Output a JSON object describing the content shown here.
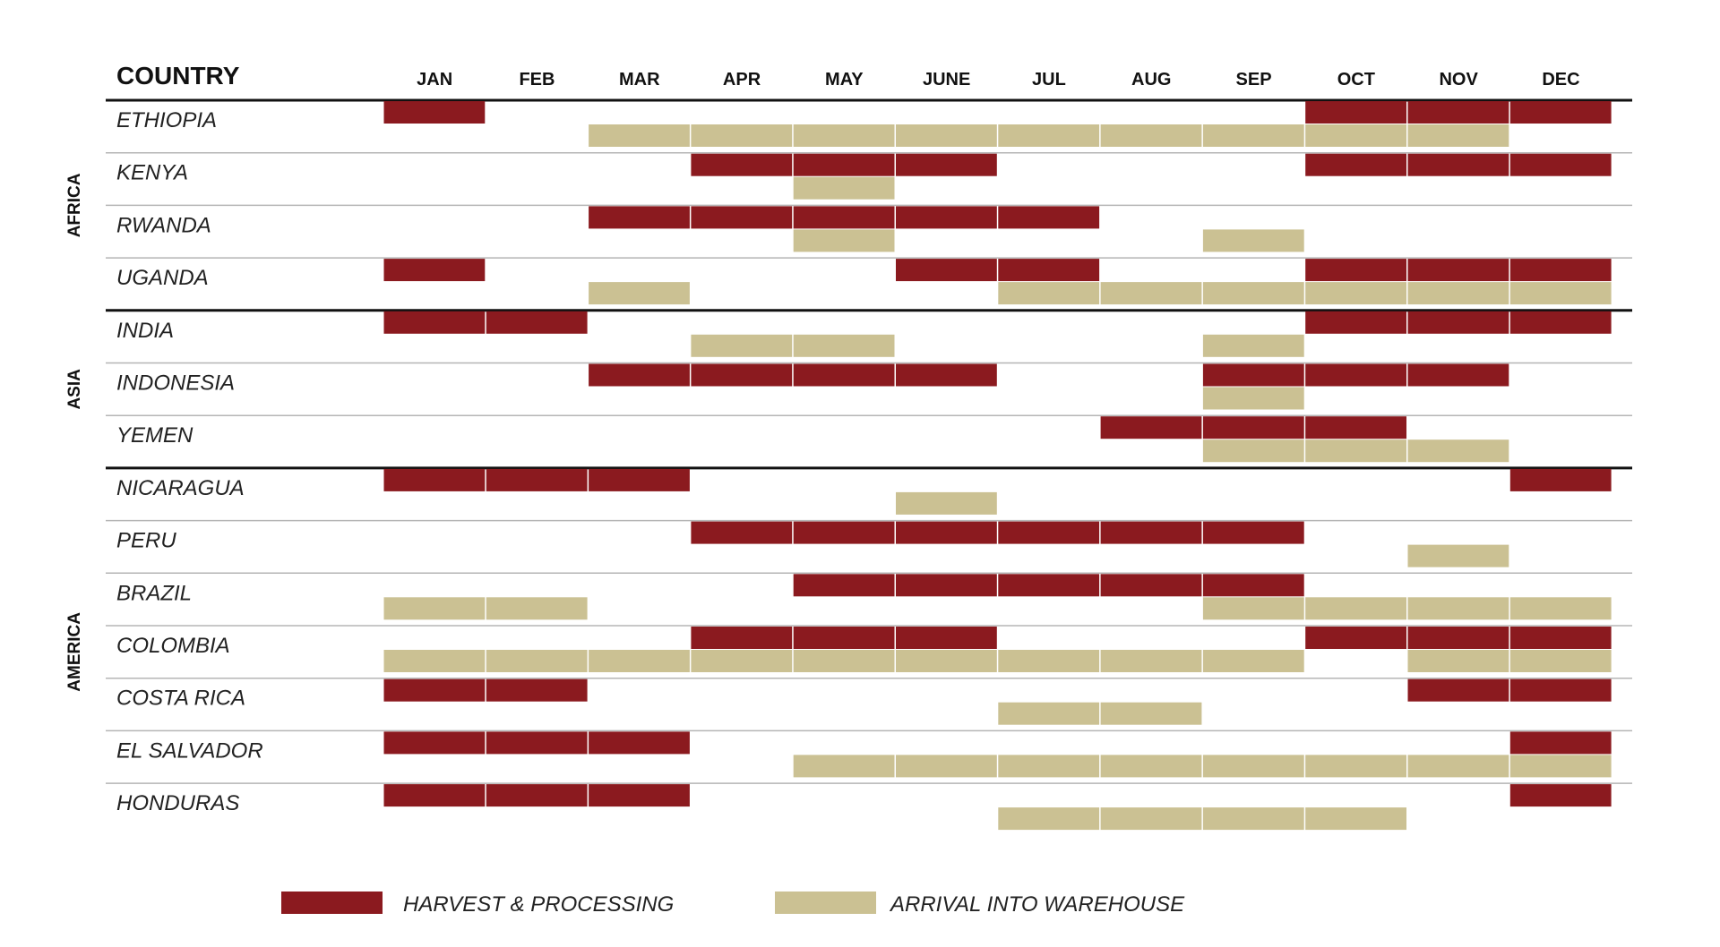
{
  "chart_data": {
    "type": "gantt-calendar",
    "title": "COUNTRY",
    "months": [
      "JAN",
      "FEB",
      "MAR",
      "APR",
      "MAY",
      "JUNE",
      "JUL",
      "AUG",
      "SEP",
      "OCT",
      "NOV",
      "DEC"
    ],
    "series": [
      {
        "key": "harvest",
        "name": "HARVEST & PROCESSING",
        "color": "#8b1a1f"
      },
      {
        "key": "arrival",
        "name": "ARRIVAL INTO WAREHOUSE",
        "color": "#cbc193"
      }
    ],
    "regions": [
      {
        "name": "AFRICA",
        "countries": [
          {
            "name": "ETHIOPIA",
            "harvest": [
              1,
              10,
              11,
              12
            ],
            "arrival": [
              3,
              4,
              5,
              6,
              7,
              8,
              9,
              10,
              11
            ]
          },
          {
            "name": "KENYA",
            "harvest": [
              4,
              5,
              6,
              10,
              11,
              12
            ],
            "arrival": [
              5
            ]
          },
          {
            "name": "RWANDA",
            "harvest": [
              3,
              4,
              5,
              6,
              7
            ],
            "arrival": [
              5,
              9
            ]
          },
          {
            "name": "UGANDA",
            "harvest": [
              1,
              6,
              7,
              10,
              11,
              12
            ],
            "arrival": [
              3,
              7,
              8,
              9,
              10,
              11,
              12
            ]
          }
        ]
      },
      {
        "name": "ASIA",
        "countries": [
          {
            "name": "INDIA",
            "harvest": [
              1,
              2,
              10,
              11,
              12
            ],
            "arrival": [
              4,
              5,
              9
            ]
          },
          {
            "name": "INDONESIA",
            "harvest": [
              3,
              4,
              5,
              6,
              9,
              10,
              11
            ],
            "arrival": [
              9
            ]
          },
          {
            "name": "YEMEN",
            "harvest": [
              8,
              9,
              10
            ],
            "arrival": [
              9,
              10,
              11
            ]
          }
        ]
      },
      {
        "name": "AMERICA",
        "countries": [
          {
            "name": "NICARAGUA",
            "harvest": [
              1,
              2,
              3,
              12
            ],
            "arrival": [
              6
            ]
          },
          {
            "name": "PERU",
            "harvest": [
              4,
              5,
              6,
              7,
              8,
              9
            ],
            "arrival": [
              11
            ]
          },
          {
            "name": "BRAZIL",
            "harvest": [
              5,
              6,
              7,
              8,
              9
            ],
            "arrival": [
              1,
              2,
              9,
              10,
              11,
              12
            ]
          },
          {
            "name": "COLOMBIA",
            "harvest": [
              4,
              5,
              6,
              10,
              11,
              12
            ],
            "arrival": [
              1,
              2,
              3,
              4,
              5,
              6,
              7,
              8,
              9,
              11,
              12
            ]
          },
          {
            "name": "COSTA RICA",
            "harvest": [
              1,
              2,
              11,
              12
            ],
            "arrival": [
              7,
              8
            ]
          },
          {
            "name": "EL SALVADOR",
            "harvest": [
              1,
              2,
              3,
              12
            ],
            "arrival": [
              5,
              6,
              7,
              8,
              9,
              10,
              11,
              12
            ]
          },
          {
            "name": "HONDURAS",
            "harvest": [
              1,
              2,
              3,
              12
            ],
            "arrival": [
              7,
              8,
              9,
              10
            ]
          }
        ]
      }
    ]
  }
}
